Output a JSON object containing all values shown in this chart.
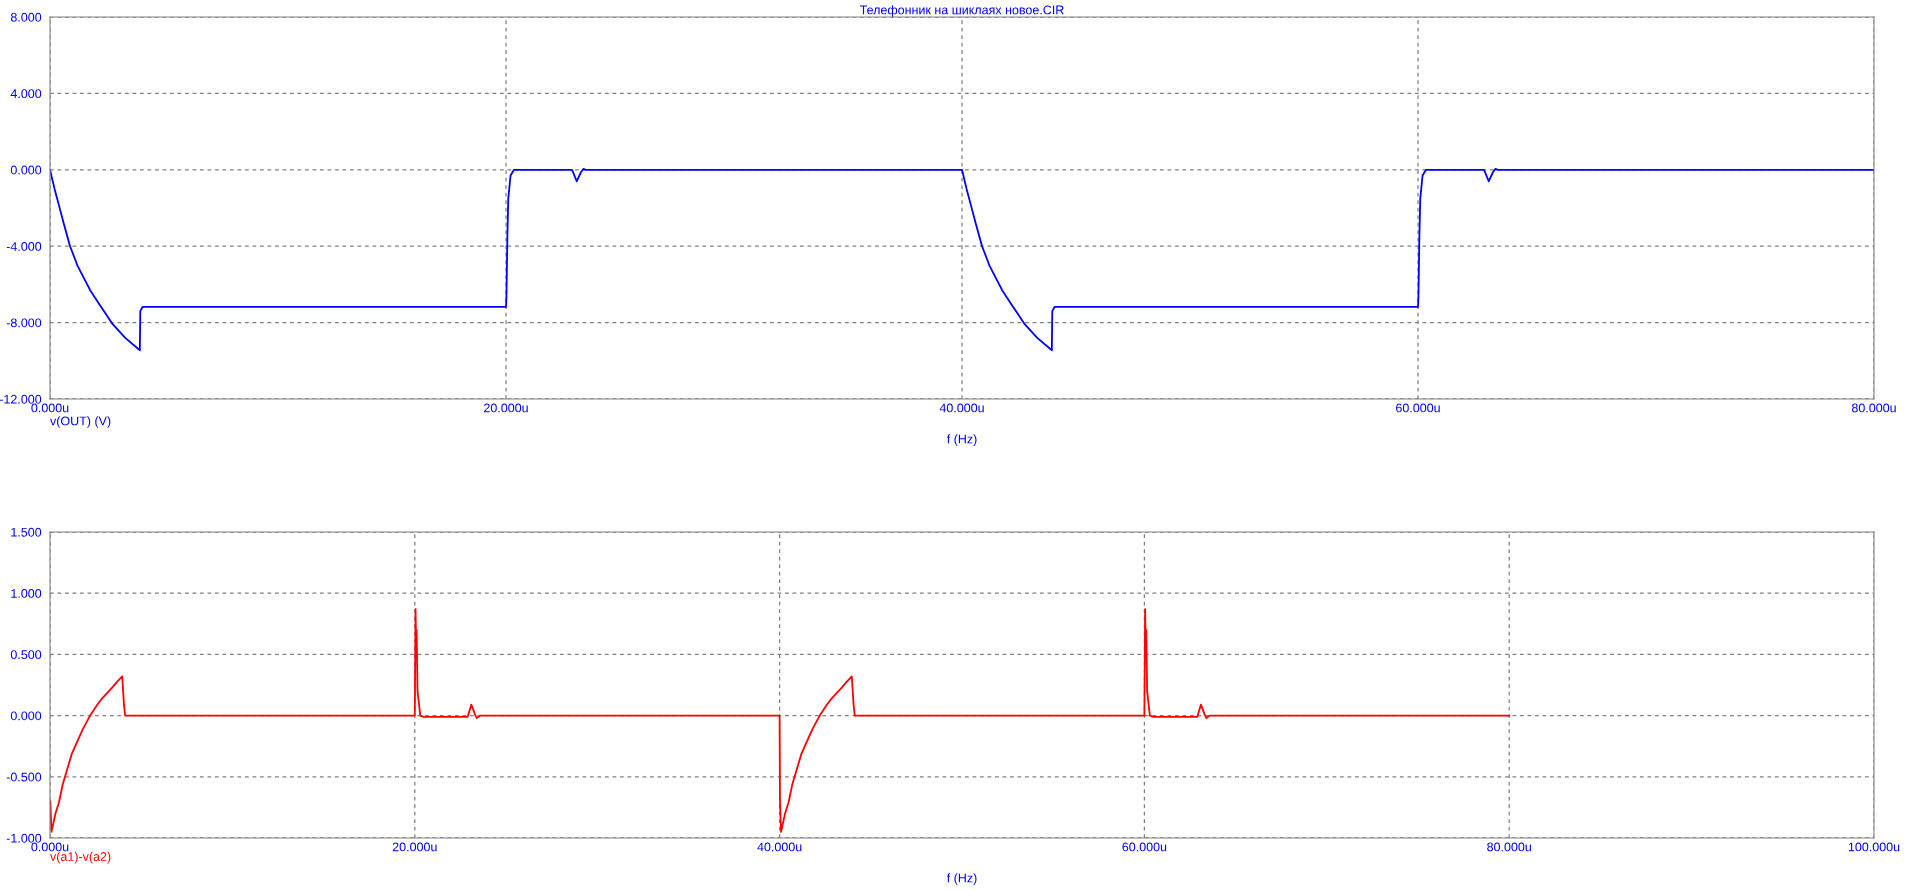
{
  "chart_data": [
    {
      "type": "line",
      "title": "Телефонник на шиклаях новое.CIR",
      "xlabel": "f (Hz)",
      "xlim": [
        0,
        80
      ],
      "xticks": [
        {
          "value": 0,
          "label": "0.000u"
        },
        {
          "value": 20,
          "label": "20.000u"
        },
        {
          "value": 40,
          "label": "40.000u"
        },
        {
          "value": 60,
          "label": "60.000u"
        },
        {
          "value": 80,
          "label": "80.000u"
        }
      ],
      "ylim": [
        -12,
        8
      ],
      "yticks": [
        {
          "value": -12,
          "label": "-12.000"
        },
        {
          "value": -8,
          "label": "-8.000"
        },
        {
          "value": -4,
          "label": "-4.000"
        },
        {
          "value": 0,
          "label": "0.000"
        },
        {
          "value": 4,
          "label": "4.000"
        },
        {
          "value": 8,
          "label": "8.000"
        }
      ],
      "grid": true,
      "legend": false,
      "line_style": "solid",
      "marker": "none",
      "series": [
        {
          "name": "v(OUT) (V)",
          "color": "#0000ff",
          "x": [
            0,
            0.2,
            0.39,
            0.6,
            0.88,
            1.2,
            1.5,
            1.76,
            2.2,
            2.73,
            3.3,
            3.94,
            3.96,
            4.06,
            20.0,
            20.02,
            20.06,
            20.1,
            20.2,
            20.35,
            22.9,
            23.1,
            23.3,
            23.4,
            23.5,
            40,
            40.2,
            40.39,
            40.6,
            40.88,
            41.2,
            41.5,
            41.76,
            42.2,
            42.73,
            43.3,
            43.94,
            43.96,
            44.06,
            60.0,
            60.02,
            60.06,
            60.1,
            60.2,
            60.35,
            62.9,
            63.1,
            63.3,
            63.4,
            63.5,
            80
          ],
          "values": [
            0,
            -1.0,
            -1.85,
            -2.8,
            -4,
            -5.0,
            -5.7,
            -6.3,
            -7.1,
            -8.05,
            -8.8,
            -9.45,
            -7.4,
            -7.18,
            -7.18,
            -6.6,
            -3.5,
            -1.5,
            -0.3,
            0,
            0,
            -0.6,
            -0.1,
            0.05,
            0,
            0,
            -1.0,
            -1.85,
            -2.8,
            -4,
            -5.0,
            -5.7,
            -6.3,
            -7.1,
            -8.05,
            -8.8,
            -9.45,
            -7.4,
            -7.18,
            -7.18,
            -6.6,
            -3.5,
            -1.5,
            -0.3,
            0,
            0,
            -0.6,
            -0.1,
            0.05,
            0,
            0
          ]
        }
      ]
    },
    {
      "type": "line",
      "xlabel": "f (Hz)",
      "xlim": [
        0,
        100
      ],
      "xticks": [
        {
          "value": 0,
          "label": "0.000u"
        },
        {
          "value": 20,
          "label": "20.000u"
        },
        {
          "value": 40,
          "label": "40.000u"
        },
        {
          "value": 60,
          "label": "60.000u"
        },
        {
          "value": 80,
          "label": "80.000u"
        },
        {
          "value": 100,
          "label": "100.000u"
        }
      ],
      "ylim": [
        -1,
        1.5
      ],
      "yticks": [
        {
          "value": -1,
          "label": "-1.000"
        },
        {
          "value": -0.5,
          "label": "-0.500"
        },
        {
          "value": 0,
          "label": "0.000"
        },
        {
          "value": 0.5,
          "label": "0.500"
        },
        {
          "value": 1,
          "label": "1.000"
        },
        {
          "value": 1.5,
          "label": "1.500"
        }
      ],
      "grid": true,
      "legend": false,
      "line_style": "solid",
      "marker": "none",
      "series": [
        {
          "name": "v(a1)-v(a2)",
          "color": "#ff0000",
          "x": [
            0.02,
            0.08,
            0.3,
            0.49,
            0.7,
            0.98,
            1.2,
            1.47,
            1.8,
            2.2,
            2.6,
            2.8,
            3.1,
            3.42,
            3.7,
            3.96,
            4.05,
            4.12,
            20,
            20.04,
            20.08,
            20.1,
            20.15,
            20.3,
            20.5,
            22.9,
            23.1,
            23.3,
            23.4,
            23.6,
            40,
            40.02,
            40.08,
            40.3,
            40.49,
            40.7,
            40.98,
            41.2,
            41.47,
            41.8,
            42.2,
            42.6,
            42.8,
            43.1,
            43.42,
            43.7,
            43.96,
            44.05,
            44.12,
            60,
            60.04,
            60.08,
            60.1,
            60.15,
            60.3,
            60.5,
            62.9,
            63.1,
            63.3,
            63.4,
            63.6,
            80
          ],
          "values": [
            -0.7,
            -0.95,
            -0.8,
            -0.71,
            -0.56,
            -0.42,
            -0.31,
            -0.22,
            -0.11,
            0,
            0.09,
            0.13,
            0.18,
            0.23,
            0.28,
            0.32,
            0.1,
            0,
            0,
            0.87,
            0.5,
            0.7,
            0.2,
            0,
            -0.01,
            -0.01,
            0.09,
            0.01,
            -0.02,
            0,
            0,
            -0.7,
            -0.95,
            -0.8,
            -0.71,
            -0.56,
            -0.42,
            -0.31,
            -0.22,
            -0.11,
            0,
            0.09,
            0.13,
            0.18,
            0.23,
            0.28,
            0.32,
            0.1,
            0,
            0,
            0.87,
            0.5,
            0.7,
            0.2,
            0,
            -0.01,
            -0.01,
            0.09,
            0.01,
            -0.02,
            0,
            0
          ]
        }
      ]
    }
  ]
}
